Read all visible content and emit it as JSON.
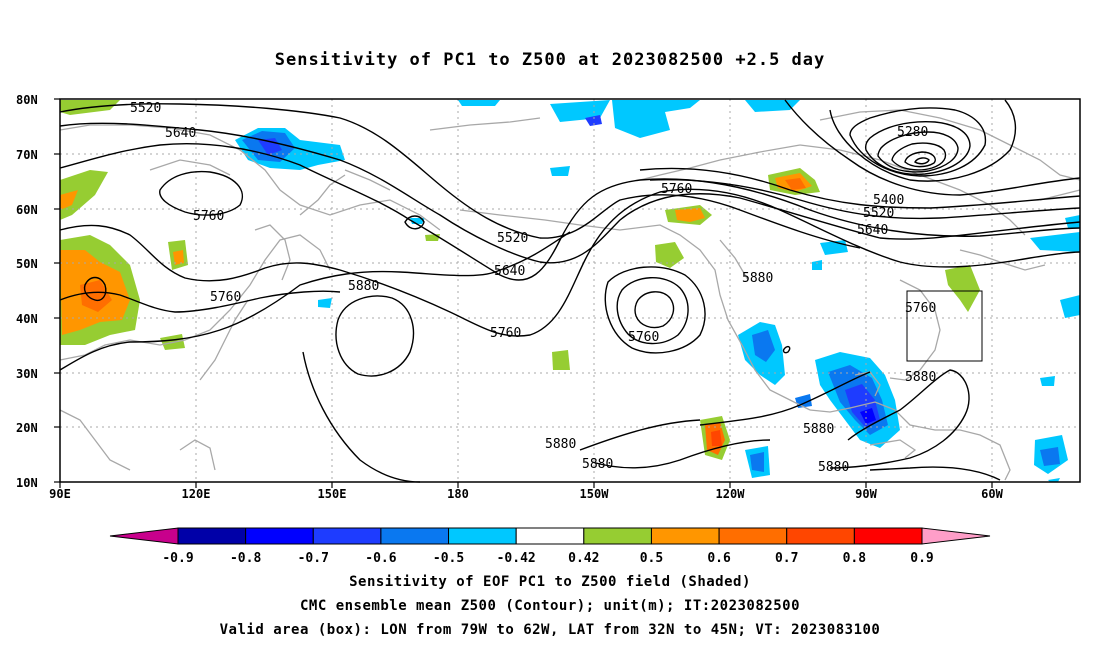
{
  "title": "Sensitivity of PC1 to Z500 at 2023082500 +2.5 day",
  "lat_labels": [
    "80N",
    "70N",
    "60N",
    "50N",
    "40N",
    "30N",
    "20N",
    "10N"
  ],
  "lon_labels": [
    "90E",
    "120E",
    "150E",
    "180",
    "150W",
    "120W",
    "90W",
    "60W"
  ],
  "contour_labels": [
    "5520",
    "5640",
    "5760",
    "5760",
    "5520",
    "5640",
    "5760",
    "5880",
    "5760",
    "5760",
    "5880",
    "5280",
    "5400",
    "5520",
    "5640",
    "5760",
    "5880",
    "5880",
    "5880",
    "5880",
    "5880"
  ],
  "colorbar": {
    "labels": [
      "-0.9",
      "-0.8",
      "-0.7",
      "-0.6",
      "-0.5",
      "-0.42",
      "0.42",
      "0.5",
      "0.6",
      "0.7",
      "0.8",
      "0.9"
    ],
    "colors": [
      "#0000a8",
      "#0000ff",
      "#1e3cff",
      "#0a78f0",
      "#00c8ff",
      "#ffffff",
      "#96cd32",
      "#ff9600",
      "#ff6e00",
      "#ff4600",
      "#ff0000"
    ],
    "low_end_color": "#c8008c",
    "high_end_color": "#ff9ec8"
  },
  "valid_box": {
    "lon_from": "79W",
    "lon_to": "62W",
    "lat_from": "32N",
    "lat_to": "45N"
  },
  "captions": {
    "line1": "Sensitivity of EOF PC1 to Z500 field (Shaded)",
    "line2": "CMC ensemble mean Z500 (Contour); unit(m); IT:2023082500",
    "line3": "Valid area (box): LON from 79W to 62W, LAT from 32N to 45N; VT: 2023083100"
  }
}
